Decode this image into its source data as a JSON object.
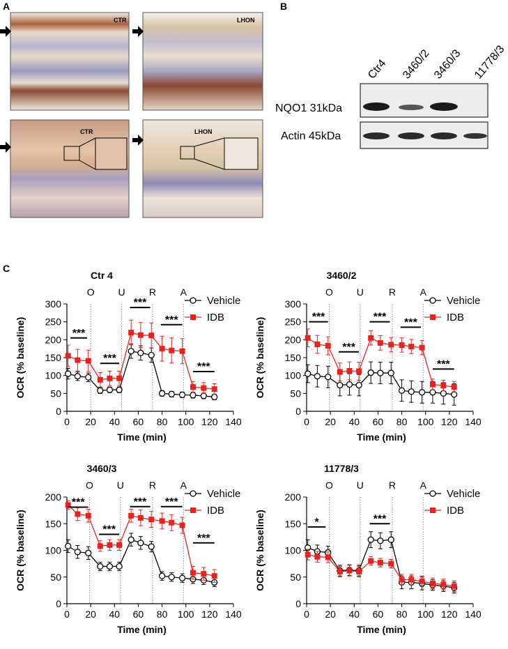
{
  "panels": {
    "a": {
      "label": "A",
      "images": [
        {
          "label": "CTR"
        },
        {
          "label": "LHON"
        },
        {
          "label": "CTR"
        },
        {
          "label": "LHON"
        }
      ]
    },
    "b": {
      "label": "B",
      "lanes": [
        "Ctr4",
        "3460/2",
        "3460/3",
        "11778/3"
      ],
      "rows": [
        "NQO1 31kDa",
        "Actin 45kDa"
      ]
    },
    "c": {
      "label": "C"
    }
  },
  "chart_data": [
    {
      "type": "line",
      "title": "Ctr 4",
      "x_label": "Time (min)",
      "y_label": "OCR (% baseline)",
      "x": [
        1,
        9,
        18,
        28,
        36,
        44,
        54,
        62,
        71,
        80,
        88,
        97,
        106,
        115,
        124
      ],
      "series": [
        {
          "name": "Vehicle",
          "color": "#000000",
          "marker": "circle",
          "values": [
            105,
            98,
            95,
            58,
            60,
            60,
            168,
            163,
            157,
            50,
            48,
            46,
            45,
            43,
            40
          ],
          "errors": [
            15,
            12,
            12,
            8,
            8,
            8,
            20,
            20,
            20,
            8,
            8,
            8,
            8,
            8,
            8
          ]
        },
        {
          "name": "IDB",
          "color": "#e8231f",
          "marker": "square",
          "values": [
            155,
            143,
            141,
            88,
            92,
            92,
            220,
            213,
            212,
            175,
            170,
            168,
            68,
            65,
            62
          ],
          "errors": [
            30,
            30,
            30,
            20,
            20,
            20,
            35,
            35,
            35,
            35,
            35,
            35,
            15,
            15,
            15
          ]
        }
      ],
      "xlim": [
        0,
        140
      ],
      "xticks": [
        0,
        20,
        40,
        60,
        80,
        100,
        120,
        140
      ],
      "ylim": [
        0,
        300
      ],
      "yticks": [
        0,
        50,
        100,
        150,
        200,
        250,
        300
      ],
      "phases": [
        {
          "label": "O",
          "x": 20
        },
        {
          "label": "U",
          "x": 46
        },
        {
          "label": "R",
          "x": 72
        },
        {
          "label": "A",
          "x": 98
        }
      ],
      "annotations": [
        {
          "text": "***",
          "x": [
            3,
            17
          ],
          "y": 205
        },
        {
          "text": "***",
          "x": [
            28,
            44
          ],
          "y": 134
        },
        {
          "text": "***",
          "x": [
            53,
            70
          ],
          "y": 290
        },
        {
          "text": "***",
          "x": [
            79,
            97
          ],
          "y": 242
        },
        {
          "text": "***",
          "x": [
            106,
            124
          ],
          "y": 111
        }
      ],
      "legend": "upper right"
    },
    {
      "type": "line",
      "title": "3460/2",
      "x_label": "Time (min)",
      "y_label": "OCR (% baseline)",
      "x": [
        1,
        9,
        18,
        28,
        36,
        44,
        54,
        62,
        71,
        80,
        88,
        97,
        106,
        115,
        124
      ],
      "series": [
        {
          "name": "Vehicle",
          "color": "#000000",
          "marker": "circle",
          "values": [
            105,
            98,
            96,
            73,
            75,
            73,
            108,
            107,
            107,
            58,
            55,
            53,
            53,
            50,
            47
          ],
          "errors": [
            25,
            30,
            30,
            30,
            30,
            30,
            30,
            30,
            30,
            30,
            30,
            30,
            30,
            30,
            30
          ]
        },
        {
          "name": "IDB",
          "color": "#e8231f",
          "marker": "square",
          "values": [
            205,
            187,
            183,
            110,
            113,
            112,
            205,
            191,
            186,
            185,
            181,
            178,
            75,
            72,
            68
          ],
          "errors": [
            25,
            25,
            25,
            25,
            25,
            25,
            20,
            20,
            20,
            20,
            20,
            20,
            15,
            15,
            15
          ]
        }
      ],
      "xlim": [
        0,
        140
      ],
      "xticks": [
        0,
        20,
        40,
        60,
        80,
        100,
        120,
        140
      ],
      "ylim": [
        0,
        300
      ],
      "yticks": [
        0,
        50,
        100,
        150,
        200,
        250,
        300
      ],
      "phases": [
        {
          "label": "O",
          "x": 19
        },
        {
          "label": "U",
          "x": 45
        },
        {
          "label": "R",
          "x": 72
        },
        {
          "label": "A",
          "x": 98
        }
      ],
      "annotations": [
        {
          "text": "***",
          "x": [
            2,
            18
          ],
          "y": 250
        },
        {
          "text": "***",
          "x": [
            27,
            44
          ],
          "y": 166
        },
        {
          "text": "***",
          "x": [
            53,
            70
          ],
          "y": 250
        },
        {
          "text": "***",
          "x": [
            79,
            96
          ],
          "y": 235
        },
        {
          "text": "***",
          "x": [
            106,
            124
          ],
          "y": 118
        }
      ],
      "legend": "upper right"
    },
    {
      "type": "line",
      "title": "3460/3",
      "x_label": "Time (min)",
      "y_label": "OCR (% baseline)",
      "x": [
        1,
        9,
        18,
        28,
        36,
        44,
        54,
        62,
        71,
        80,
        88,
        97,
        106,
        115,
        124
      ],
      "series": [
        {
          "name": "Vehicle",
          "color": "#000000",
          "marker": "circle",
          "values": [
            108,
            97,
            95,
            70,
            70,
            70,
            120,
            114,
            107,
            52,
            50,
            48,
            46,
            44,
            40
          ],
          "errors": [
            12,
            12,
            12,
            8,
            8,
            8,
            12,
            12,
            10,
            8,
            8,
            8,
            8,
            8,
            8
          ]
        },
        {
          "name": "IDB",
          "color": "#e8231f",
          "marker": "square",
          "values": [
            185,
            168,
            165,
            108,
            110,
            110,
            165,
            161,
            158,
            155,
            152,
            147,
            58,
            56,
            52
          ],
          "errors": [
            8,
            12,
            12,
            10,
            10,
            10,
            12,
            15,
            15,
            15,
            15,
            15,
            12,
            12,
            12
          ]
        }
      ],
      "xlim": [
        0,
        140
      ],
      "xticks": [
        0,
        20,
        40,
        60,
        80,
        100,
        120,
        140
      ],
      "ylim": [
        0,
        200
      ],
      "yticks": [
        0,
        50,
        100,
        150,
        200
      ],
      "phases": [
        {
          "label": "O",
          "x": 19
        },
        {
          "label": "U",
          "x": 45
        },
        {
          "label": "R",
          "x": 72
        },
        {
          "label": "A",
          "x": 98
        }
      ],
      "annotations": [
        {
          "text": "***",
          "x": [
            1,
            18
          ],
          "y": 181
        },
        {
          "text": "***",
          "x": [
            27,
            44
          ],
          "y": 130
        },
        {
          "text": "***",
          "x": [
            53,
            70
          ],
          "y": 182
        },
        {
          "text": "***",
          "x": [
            79,
            97
          ],
          "y": 182
        },
        {
          "text": "***",
          "x": [
            106,
            124
          ],
          "y": 114
        }
      ],
      "legend": "upper right"
    },
    {
      "type": "line",
      "title": "11778/3",
      "x_label": "Time (min)",
      "y_label": "OCR (% baseline)",
      "x": [
        1,
        9,
        18,
        28,
        36,
        44,
        54,
        62,
        71,
        80,
        88,
        97,
        106,
        115,
        124
      ],
      "series": [
        {
          "name": "Vehicle",
          "color": "#000000",
          "marker": "circle",
          "values": [
            105,
            98,
            96,
            62,
            63,
            62,
            120,
            118,
            120,
            40,
            40,
            38,
            35,
            33,
            30
          ],
          "errors": [
            15,
            12,
            12,
            10,
            10,
            10,
            15,
            15,
            15,
            12,
            12,
            12,
            10,
            10,
            10
          ]
        },
        {
          "name": "IDB",
          "color": "#e8231f",
          "marker": "square",
          "values": [
            92,
            88,
            87,
            60,
            62,
            60,
            80,
            77,
            75,
            45,
            45,
            42,
            38,
            36,
            33
          ],
          "errors": [
            10,
            10,
            10,
            10,
            10,
            10,
            8,
            8,
            8,
            10,
            10,
            10,
            10,
            10,
            10
          ]
        }
      ],
      "xlim": [
        0,
        140
      ],
      "xticks": [
        0,
        20,
        40,
        60,
        80,
        100,
        120,
        140
      ],
      "ylim": [
        0,
        200
      ],
      "yticks": [
        0,
        50,
        100,
        150,
        200
      ],
      "phases": [
        {
          "label": "O",
          "x": 19
        },
        {
          "label": "U",
          "x": 45
        },
        {
          "label": "R",
          "x": 72
        },
        {
          "label": "A",
          "x": 98
        }
      ],
      "annotations": [
        {
          "text": "*",
          "x": [
            1,
            16
          ],
          "y": 144
        },
        {
          "text": "***",
          "x": [
            53,
            70
          ],
          "y": 150
        }
      ],
      "legend": "upper right"
    }
  ]
}
